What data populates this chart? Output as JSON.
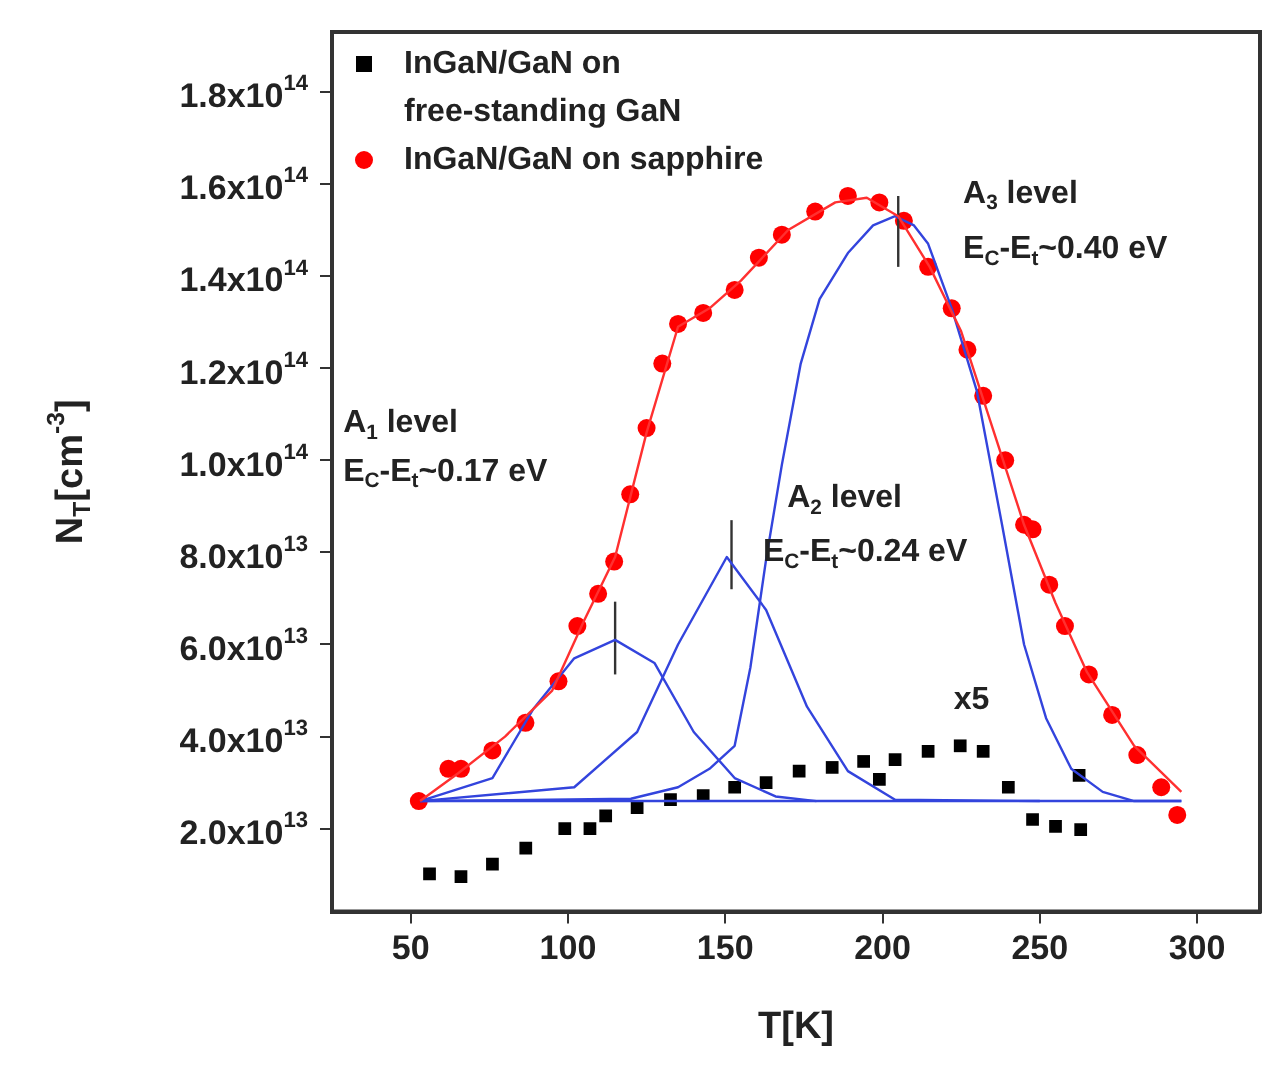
{
  "chart_data": {
    "type": "scatter",
    "xlabel": "T[K]",
    "ylabel": "N$_{T}$[cm$^{-3}$]",
    "xlim": [
      25,
      320
    ],
    "xticks": [
      50,
      100,
      150,
      200,
      250,
      300
    ],
    "ylim": [
      2000000000000.0,
      193000000000000.0
    ],
    "yticks": [
      {
        "value": 20000000000000.0,
        "label": "2.0x10$^{13}$"
      },
      {
        "value": 40000000000000.0,
        "label": "4.0x10$^{13}$"
      },
      {
        "value": 60000000000000.0,
        "label": "6.0x10$^{13}$"
      },
      {
        "value": 80000000000000.0,
        "label": "8.0x10$^{13}$"
      },
      {
        "value": 100000000000000.0,
        "label": "1.0x10$^{14}$"
      },
      {
        "value": 120000000000000.0,
        "label": "1.2x10$^{14}$"
      },
      {
        "value": 140000000000000.0,
        "label": "1.4x10$^{14}$"
      },
      {
        "value": 160000000000000.0,
        "label": "1.6x10$^{14}$"
      },
      {
        "value": 180000000000000.0,
        "label": "1.8x10$^{14}$"
      }
    ],
    "grid": false,
    "legend": "top left",
    "series": [
      {
        "name": "InGaN/GaN on free-standing GaN",
        "type": "scatter",
        "marker": "square",
        "color": "#000000",
        "x": [
          56,
          66,
          76,
          86.6,
          99,
          107,
          112,
          122,
          132.6,
          143,
          153,
          163,
          173.5,
          184,
          194,
          199,
          204,
          214.5,
          224.7,
          232,
          240,
          247.7,
          255,
          263,
          262.5
        ],
        "values": [
          10200000000000.0,
          9600000000000.0,
          12300000000000.0,
          15800000000000.0,
          20000000000000.0,
          20000000000000.0,
          22800000000000.0,
          24600000000000.0,
          26300000000000.0,
          27200000000000.0,
          29000000000000.0,
          30000000000000.0,
          32500000000000.0,
          33300000000000.0,
          34600000000000.0,
          30700000000000.0,
          35000000000000.0,
          36800000000000.0,
          38000000000000.0,
          36800000000000.0,
          29000000000000.0,
          22000000000000.0,
          20500000000000.0,
          19800000000000.0,
          31600000000000.0
        ]
      },
      {
        "name": "InGaN/GaN on sapphire",
        "type": "scatter",
        "marker": "circle",
        "color": "#ff0000",
        "x": [
          52.6,
          62,
          66,
          76,
          86.5,
          97,
          103,
          109.6,
          114.7,
          119.8,
          125,
          130,
          135,
          143,
          153,
          160.7,
          168,
          178.6,
          189,
          199,
          206.8,
          214.5,
          222,
          227,
          232,
          239,
          245,
          247.7,
          253,
          258,
          265.6,
          273,
          281,
          288.6,
          293.7
        ],
        "values": [
          26000000000000.0,
          33000000000000.0,
          33000000000000.0,
          37000000000000.0,
          43000000000000.0,
          52000000000000.0,
          64000000000000.0,
          71000000000000.0,
          78000000000000.0,
          92600000000000.0,
          107000000000000.0,
          121000000000000.0,
          129600000000000.0,
          132000000000000.0,
          137000000000000.0,
          144000000000000.0,
          149000000000000.0,
          154000000000000.0,
          157400000000000.0,
          156000000000000.0,
          152000000000000.0,
          142000000000000.0,
          133000000000000.0,
          124000000000000.0,
          114000000000000.0,
          100000000000000.0,
          86000000000000.0,
          85000000000000.0,
          73000000000000.0,
          64000000000000.0,
          53500000000000.0,
          44700000000000.0,
          36000000000000.0,
          29000000000000.0,
          23000000000000.0
        ]
      },
      {
        "type": "line",
        "marker": "none",
        "color": "#ff3030",
        "x": [
          53,
          65,
          80,
          95,
          105,
          115,
          125,
          135,
          145,
          155,
          170,
          185,
          195,
          205,
          215,
          225,
          235,
          245,
          255,
          265,
          280,
          295
        ],
        "values": [
          26000000000000.0,
          32000000000000.0,
          40000000000000.0,
          50000000000000.0,
          65000000000000.0,
          79000000000000.0,
          106000000000000.0,
          129000000000000.0,
          133000000000000.0,
          139000000000000.0,
          150000000000000.0,
          156000000000000.0,
          157000000000000.0,
          153000000000000.0,
          142000000000000.0,
          128000000000000.0,
          107000000000000.0,
          86000000000000.0,
          69000000000000.0,
          54000000000000.0,
          38000000000000.0,
          28000000000000.0
        ]
      },
      {
        "type": "line",
        "marker": "none",
        "color": "#3344dd",
        "x": [
          53,
          295
        ],
        "values": [
          26000000000000.0,
          26000000000000.0
        ]
      },
      {
        "type": "line",
        "marker": "none",
        "color": "#3344dd",
        "x": [
          53,
          76,
          89,
          102,
          115,
          127.5,
          140,
          153,
          166,
          179
        ],
        "values": [
          26000000000000.0,
          31000000000000.0,
          46000000000000.0,
          57000000000000.0,
          61000000000000.0,
          56000000000000.0,
          41000000000000.0,
          31000000000000.0,
          27000000000000.0,
          26000000000000.0
        ]
      },
      {
        "type": "line",
        "marker": "none",
        "color": "#3344dd",
        "x": [
          53,
          102,
          122,
          135,
          150.5,
          163,
          176,
          189,
          204,
          250
        ],
        "values": [
          26000000000000.0,
          29000000000000.0,
          41000000000000.0,
          60000000000000.0,
          79000000000000.0,
          67500000000000.0,
          46500000000000.0,
          32500000000000.0,
          26300000000000.0,
          26000000000000.0
        ]
      },
      {
        "type": "line",
        "marker": "none",
        "color": "#3344dd",
        "x": [
          53,
          120,
          135,
          145,
          153,
          158,
          163,
          168,
          174,
          180,
          189,
          197,
          204,
          210,
          214.5,
          222,
          230,
          238,
          245,
          252,
          260,
          270,
          280,
          295
        ],
        "values": [
          26000000000000.0,
          26500000000000.0,
          29000000000000.0,
          33000000000000.0,
          38000000000000.0,
          55000000000000.0,
          78500000000000.0,
          99000000000000.0,
          121000000000000.0,
          135000000000000.0,
          145000000000000.0,
          151000000000000.0,
          153000000000000.0,
          151000000000000.0,
          147000000000000.0,
          133000000000000.0,
          115000000000000.0,
          86000000000000.0,
          60000000000000.0,
          44000000000000.0,
          33000000000000.0,
          28000000000000.0,
          26000000000000.0,
          26000000000000.0
        ]
      },
      {
        "type": "line",
        "marker": "none",
        "color": "#333333",
        "x": [
          115,
          115
        ],
        "values": [
          53500000000000.0,
          69300000000000.0
        ]
      },
      {
        "type": "line",
        "marker": "none",
        "color": "#333333",
        "x": [
          152,
          152
        ],
        "values": [
          72000000000000.0,
          87000000000000.0
        ]
      },
      {
        "type": "line",
        "marker": "none",
        "color": "#333333",
        "x": [
          205,
          205
        ],
        "values": [
          142000000000000.0,
          157400000000000.0
        ]
      }
    ],
    "annotations": [
      "A$_{1}$ level",
      "E$_{C}$-E$_{t}$~0.17 eV",
      {
        "text": "A$_{2}$ level",
        "x": 169.7,
        "y": 91700000000000.0
      },
      {
        "text": "E$_{C}$-E$_{t}$~0.24 eV",
        "x": 162,
        "y": 80000000000000.0
      },
      "A$_{3}$ level",
      "E$_{C}$-E$_{t}$~0.40 eV",
      "x5"
    ]
  }
}
